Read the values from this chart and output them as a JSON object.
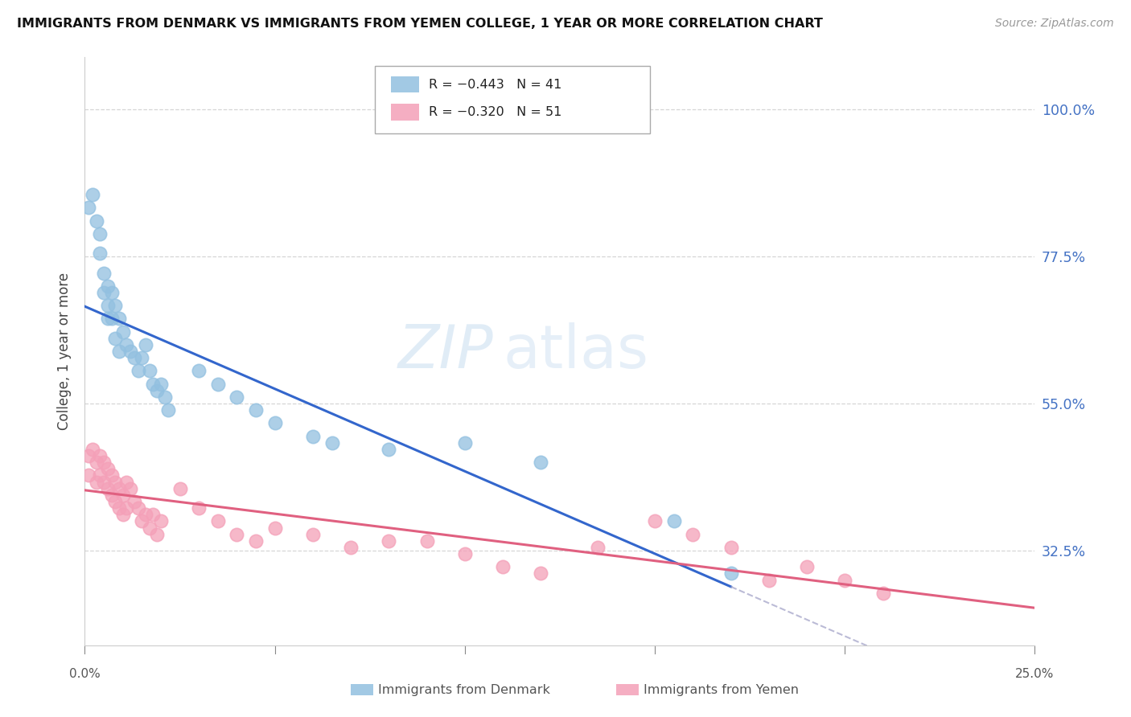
{
  "title": "IMMIGRANTS FROM DENMARK VS IMMIGRANTS FROM YEMEN COLLEGE, 1 YEAR OR MORE CORRELATION CHART",
  "source": "Source: ZipAtlas.com",
  "ylabel": "College, 1 year or more",
  "right_yticks": [
    0.325,
    0.55,
    0.775,
    1.0
  ],
  "right_yticklabels": [
    "32.5%",
    "55.0%",
    "77.5%",
    "100.0%"
  ],
  "xlim": [
    0.0,
    0.25
  ],
  "ylim": [
    0.18,
    1.08
  ],
  "legend_r1": "R = −0.443   N = 41",
  "legend_r2": "R = −0.320   N = 51",
  "blue_color": "#92c0e0",
  "pink_color": "#f4a0b8",
  "blue_line_color": "#3366cc",
  "pink_line_color": "#e06080",
  "watermark_zip": "ZIP",
  "watermark_atlas": "atlas",
  "denmark_x": [
    0.001,
    0.002,
    0.003,
    0.004,
    0.004,
    0.005,
    0.005,
    0.006,
    0.006,
    0.006,
    0.007,
    0.007,
    0.008,
    0.008,
    0.009,
    0.009,
    0.01,
    0.011,
    0.012,
    0.013,
    0.014,
    0.015,
    0.016,
    0.017,
    0.018,
    0.019,
    0.02,
    0.021,
    0.022,
    0.03,
    0.035,
    0.04,
    0.045,
    0.05,
    0.06,
    0.065,
    0.08,
    0.1,
    0.12,
    0.155,
    0.17
  ],
  "denmark_y": [
    0.85,
    0.87,
    0.83,
    0.81,
    0.78,
    0.75,
    0.72,
    0.73,
    0.7,
    0.68,
    0.72,
    0.68,
    0.7,
    0.65,
    0.68,
    0.63,
    0.66,
    0.64,
    0.63,
    0.62,
    0.6,
    0.62,
    0.64,
    0.6,
    0.58,
    0.57,
    0.58,
    0.56,
    0.54,
    0.6,
    0.58,
    0.56,
    0.54,
    0.52,
    0.5,
    0.49,
    0.48,
    0.49,
    0.46,
    0.37,
    0.29
  ],
  "yemen_x": [
    0.001,
    0.001,
    0.002,
    0.003,
    0.003,
    0.004,
    0.004,
    0.005,
    0.005,
    0.006,
    0.006,
    0.007,
    0.007,
    0.008,
    0.008,
    0.009,
    0.009,
    0.01,
    0.01,
    0.011,
    0.011,
    0.012,
    0.013,
    0.014,
    0.015,
    0.016,
    0.017,
    0.018,
    0.019,
    0.02,
    0.025,
    0.03,
    0.035,
    0.04,
    0.045,
    0.05,
    0.06,
    0.07,
    0.08,
    0.09,
    0.1,
    0.11,
    0.12,
    0.135,
    0.15,
    0.16,
    0.17,
    0.18,
    0.19,
    0.2,
    0.21
  ],
  "yemen_y": [
    0.47,
    0.44,
    0.48,
    0.46,
    0.43,
    0.47,
    0.44,
    0.46,
    0.43,
    0.45,
    0.42,
    0.44,
    0.41,
    0.43,
    0.4,
    0.42,
    0.39,
    0.41,
    0.38,
    0.43,
    0.39,
    0.42,
    0.4,
    0.39,
    0.37,
    0.38,
    0.36,
    0.38,
    0.35,
    0.37,
    0.42,
    0.39,
    0.37,
    0.35,
    0.34,
    0.36,
    0.35,
    0.33,
    0.34,
    0.34,
    0.32,
    0.3,
    0.29,
    0.33,
    0.37,
    0.35,
    0.33,
    0.28,
    0.3,
    0.28,
    0.26
  ],
  "x_tick_positions": [
    0.0,
    0.05,
    0.1,
    0.15,
    0.2,
    0.25
  ],
  "grid_color": "#cccccc",
  "spine_color": "#cccccc"
}
